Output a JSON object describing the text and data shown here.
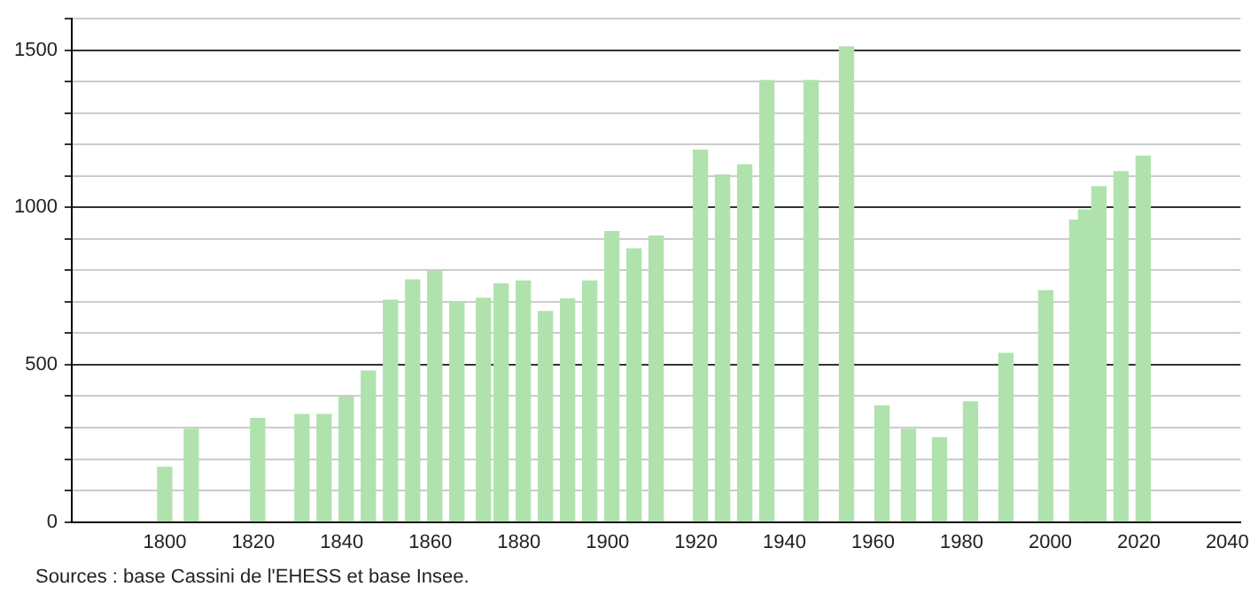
{
  "chart_data": {
    "type": "bar",
    "x": [
      1800,
      1806,
      1821,
      1831,
      1836,
      1841,
      1846,
      1851,
      1856,
      1861,
      1866,
      1872,
      1876,
      1881,
      1886,
      1891,
      1896,
      1901,
      1906,
      1911,
      1921,
      1926,
      1931,
      1936,
      1946,
      1954,
      1962,
      1968,
      1975,
      1982,
      1990,
      1999,
      2006,
      2008,
      2011,
      2016,
      2021
    ],
    "values": [
      174,
      295,
      329,
      342,
      342,
      397,
      480,
      705,
      770,
      798,
      698,
      711,
      757,
      766,
      669,
      709,
      766,
      923,
      868,
      909,
      1182,
      1103,
      1136,
      1404,
      1404,
      1511,
      369,
      295,
      268,
      382,
      536,
      735,
      960,
      992,
      1066,
      1114,
      1163
    ],
    "color": "#b0e2ae",
    "xlim": [
      1779,
      2043
    ],
    "xticks": [
      1800,
      1820,
      1840,
      1860,
      1880,
      1900,
      1920,
      1940,
      1960,
      1980,
      2000,
      2020,
      2040
    ],
    "ylim": [
      0,
      1600
    ],
    "yticks": [
      0,
      {
        "value": 100,
        "label": null
      },
      {
        "value": 200,
        "label": null
      },
      {
        "value": 300,
        "label": null
      },
      {
        "value": 400,
        "label": null
      },
      500,
      {
        "value": 600,
        "label": null
      },
      {
        "value": 700,
        "label": null
      },
      {
        "value": 800,
        "label": null
      },
      {
        "value": 900,
        "label": null
      },
      1000,
      {
        "value": 1100,
        "label": null
      },
      {
        "value": 1200,
        "label": null
      },
      {
        "value": 1300,
        "label": null
      },
      {
        "value": 1400,
        "label": null
      },
      1500,
      {
        "value": 1600,
        "label": null
      }
    ],
    "grid": "y",
    "legend": false,
    "annotations": [
      "Sources : base Cassini de l'EHESS et base Insee."
    ]
  }
}
